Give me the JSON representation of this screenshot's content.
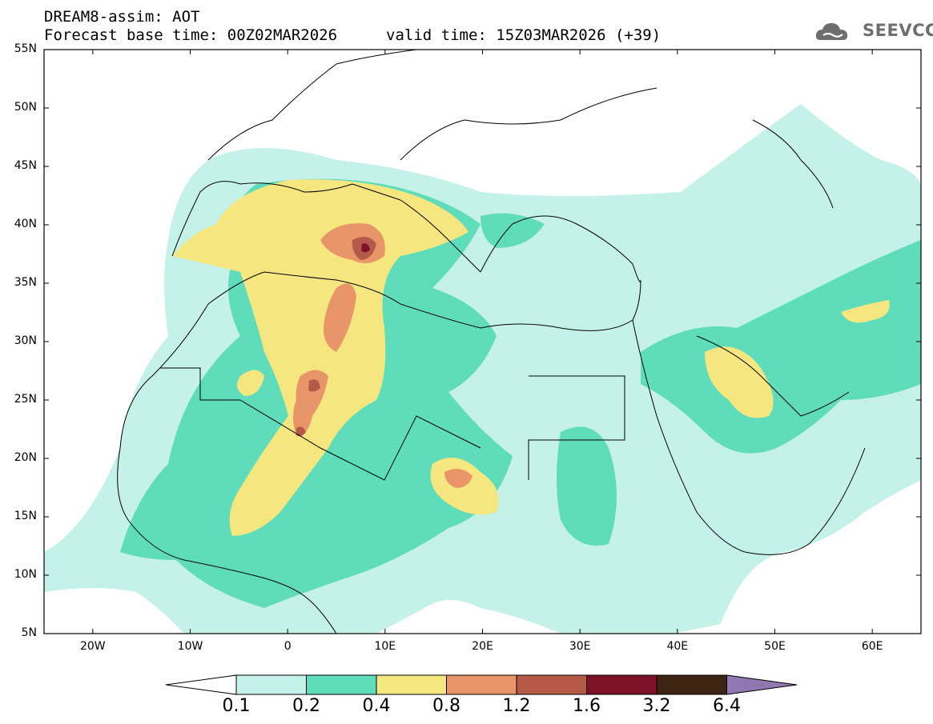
{
  "title": {
    "line1": "DREAM8-assim: AOT",
    "line2": "Forecast base time: 00Z02MAR2026",
    "valid": "valid time: 15Z03MAR2026 (+39)"
  },
  "logo": {
    "text": "SEEVCCC",
    "icon": "cloud-logo-icon"
  },
  "map": {
    "lon_range": [
      -25,
      65
    ],
    "lat_range": [
      5,
      55
    ],
    "lat_ticks": [
      "55N",
      "50N",
      "45N",
      "40N",
      "35N",
      "30N",
      "25N",
      "20N",
      "15N",
      "10N",
      "5N"
    ],
    "lon_ticks": [
      "20W",
      "10W",
      "0",
      "10E",
      "20E",
      "30E",
      "40E",
      "50E",
      "60E"
    ]
  },
  "colorbar": {
    "labels": [
      "0.1",
      "0.2",
      "0.4",
      "0.8",
      "1.2",
      "1.6",
      "3.2",
      "6.4"
    ],
    "colors": [
      "#c4f1e8",
      "#5fdcba",
      "#f5e680",
      "#e8956a",
      "#b55a48",
      "#7e1228",
      "#3c2412",
      "#9178b3"
    ]
  },
  "chart_data": {
    "type": "heatmap",
    "title": "DREAM8-assim: AOT",
    "variable": "AOT",
    "levels": [
      0.1,
      0.2,
      0.4,
      0.8,
      1.2,
      1.6,
      3.2,
      6.4
    ],
    "xlim": [
      -25,
      65
    ],
    "ylim": [
      5,
      55
    ]
  }
}
